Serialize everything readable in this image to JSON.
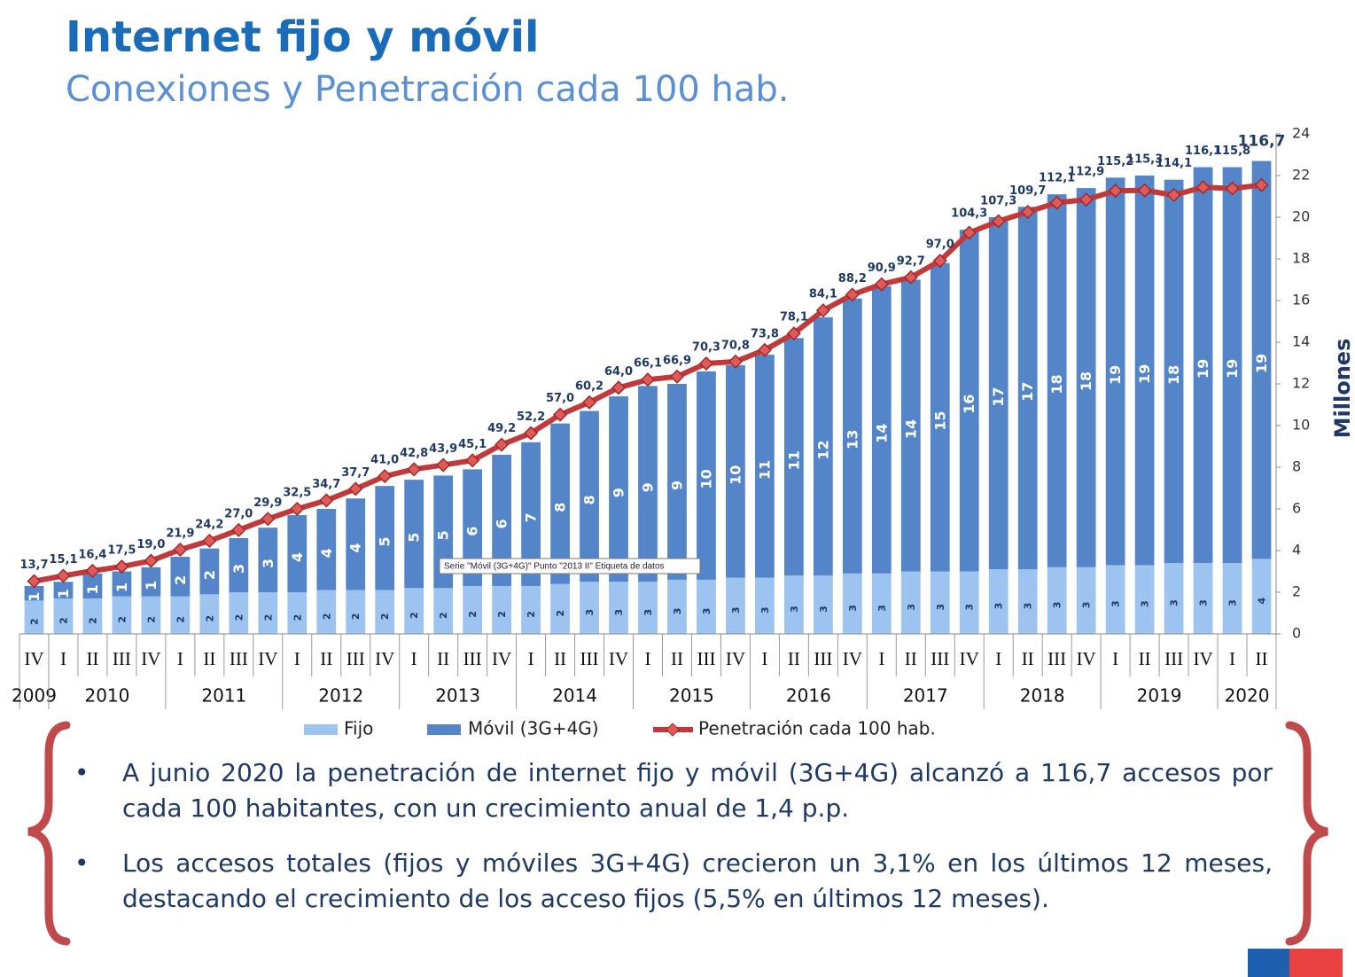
{
  "header": {
    "title": "Internet fijo y móvil",
    "subtitle": "Conexiones y Penetración cada 100 hab."
  },
  "chart_data": {
    "type": "bar_line",
    "year_groups": [
      {
        "year": "2009",
        "quarters": [
          "IV"
        ]
      },
      {
        "year": "2010",
        "quarters": [
          "I",
          "II",
          "III",
          "IV"
        ]
      },
      {
        "year": "2011",
        "quarters": [
          "I",
          "II",
          "III",
          "IV"
        ]
      },
      {
        "year": "2012",
        "quarters": [
          "I",
          "II",
          "III",
          "IV"
        ]
      },
      {
        "year": "2013",
        "quarters": [
          "I",
          "II",
          "III",
          "IV"
        ]
      },
      {
        "year": "2014",
        "quarters": [
          "I",
          "II",
          "III",
          "IV"
        ]
      },
      {
        "year": "2015",
        "quarters": [
          "I",
          "II",
          "III",
          "IV"
        ]
      },
      {
        "year": "2016",
        "quarters": [
          "I",
          "II",
          "III",
          "IV"
        ]
      },
      {
        "year": "2017",
        "quarters": [
          "I",
          "II",
          "III",
          "IV"
        ]
      },
      {
        "year": "2018",
        "quarters": [
          "I",
          "II",
          "III",
          "IV"
        ]
      },
      {
        "year": "2019",
        "quarters": [
          "I",
          "II",
          "III",
          "IV"
        ]
      },
      {
        "year": "2020",
        "quarters": [
          "I",
          "II"
        ]
      }
    ],
    "series": [
      {
        "name": "Fijo",
        "color": "#9dc3f0",
        "type": "bar",
        "values": [
          1.6,
          1.7,
          1.7,
          1.8,
          1.8,
          1.8,
          1.9,
          2.0,
          2.0,
          2.0,
          2.1,
          2.1,
          2.1,
          2.2,
          2.2,
          2.3,
          2.3,
          2.3,
          2.4,
          2.5,
          2.5,
          2.5,
          2.6,
          2.6,
          2.7,
          2.7,
          2.8,
          2.8,
          2.9,
          2.9,
          3.0,
          3.0,
          3.0,
          3.1,
          3.1,
          3.2,
          3.2,
          3.3,
          3.3,
          3.4,
          3.4,
          3.4,
          3.6
        ],
        "value_labels": [
          "2",
          "2",
          "2",
          "2",
          "2",
          "2",
          "2",
          "2",
          "2",
          "2",
          "2",
          "2",
          "2",
          "2",
          "2",
          "2",
          "2",
          "2",
          "2",
          "3",
          "3",
          "3",
          "3",
          "3",
          "3",
          "3",
          "3",
          "3",
          "3",
          "3",
          "3",
          "3",
          "3",
          "3",
          "3",
          "3",
          "3",
          "3",
          "3",
          "3",
          "3",
          "3",
          "4"
        ]
      },
      {
        "name": "Móvil (3G+4G)",
        "color": "#5585c9",
        "type": "bar",
        "values": [
          0.7,
          0.8,
          1.2,
          1.2,
          1.4,
          1.9,
          2.2,
          2.6,
          3.1,
          3.7,
          3.9,
          4.4,
          5.0,
          5.2,
          5.4,
          5.6,
          6.3,
          6.9,
          7.7,
          8.2,
          8.9,
          9.4,
          9.4,
          10.0,
          10.2,
          10.7,
          11.4,
          12.4,
          13.2,
          13.8,
          14.0,
          14.8,
          16.4,
          16.9,
          17.4,
          17.9,
          18.2,
          18.6,
          18.7,
          18.4,
          19.0,
          19.0,
          19.1
        ],
        "value_labels": [
          "1",
          "1",
          "1",
          "1",
          "1",
          "2",
          "2",
          "3",
          "3",
          "4",
          "4",
          "4",
          "5",
          "5",
          "5",
          "6",
          "6",
          "7",
          "8",
          "8",
          "9",
          "9",
          "9",
          "10",
          "10",
          "11",
          "11",
          "12",
          "13",
          "14",
          "14",
          "15",
          "16",
          "17",
          "17",
          "18",
          "18",
          "19",
          "19",
          "18",
          "19",
          "19",
          "19"
        ]
      },
      {
        "name": "Penetración cada 100 hab.",
        "color": "#c0393b",
        "type": "line",
        "axis": "y2",
        "values": [
          13.7,
          15.1,
          16.4,
          17.5,
          19.0,
          21.9,
          24.2,
          27.0,
          29.9,
          32.5,
          34.7,
          37.7,
          41.0,
          42.8,
          43.9,
          45.1,
          49.2,
          52.2,
          57.0,
          60.2,
          64.0,
          66.1,
          66.9,
          70.3,
          70.8,
          73.8,
          78.1,
          84.1,
          88.2,
          90.9,
          92.7,
          97.0,
          104.3,
          107.3,
          109.7,
          112.1,
          112.9,
          115.2,
          115.3,
          114.1,
          116.1,
          115.8,
          116.7
        ],
        "value_labels": [
          "13,7",
          "15,1",
          "16,4",
          "17,5",
          "19,0",
          "21,9",
          "24,2",
          "27,0",
          "29,9",
          "32,5",
          "34,7",
          "37,7",
          "41,0",
          "42,8",
          "43,9",
          "45,1",
          "49,2",
          "52,2",
          "57,0",
          "60,2",
          "64,0",
          "66,1",
          "66,9",
          "70,3",
          "70,8",
          "73,8",
          "78,1",
          "84,1",
          "88,2",
          "90,9",
          "92,7",
          "97,0",
          "104,3",
          "107,3",
          "109,7",
          "112,1",
          "112,9",
          "115,2",
          "115,3",
          "114,1",
          "116,1",
          "115,8",
          "116,7"
        ]
      }
    ],
    "ylim": [
      0,
      24
    ],
    "yticks": [
      0,
      2,
      4,
      6,
      8,
      10,
      12,
      14,
      16,
      18,
      20,
      22,
      24
    ],
    "y_axis_label": "Millones",
    "y2lim": [
      0,
      130
    ],
    "tooltip": "Serie \"Móvil (3G+4G)\" Punto \"2013 II\" Etiqueta de datos"
  },
  "bullets": [
    "A junio 2020 la penetración de internet fijo y móvil (3G+4G) alcanzó a 116,7 accesos por cada 100 habitantes, con un crecimiento anual de 1,4 p.p.",
    "Los accesos totales (fijos y móviles 3G+4G) crecieron un 3,1% en los últimos 12 meses, destacando el crecimiento de los acceso fijos (5,5% en últimos 12 meses)."
  ]
}
